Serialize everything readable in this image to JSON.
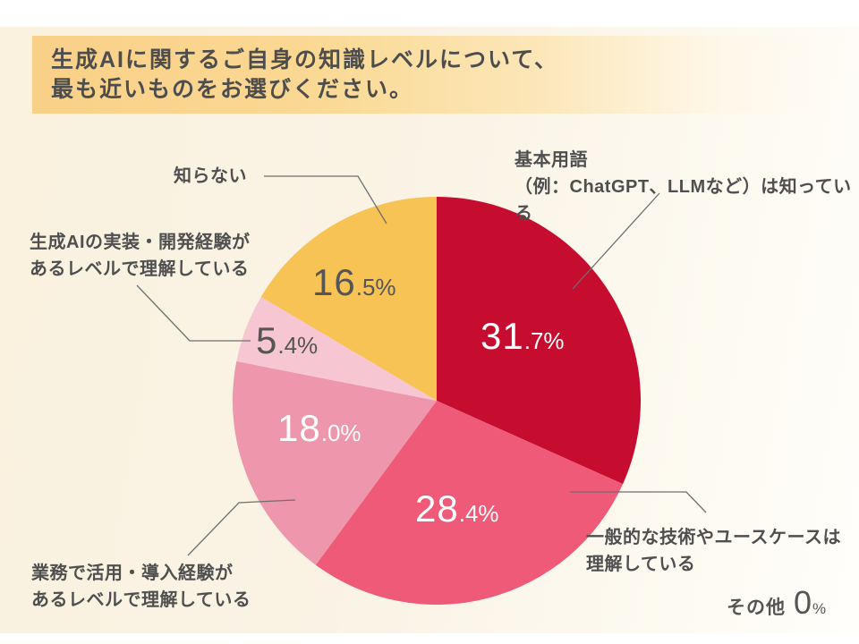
{
  "header": {
    "title": "生成AIに関するご自身の知識レベルについて、\n最も近いものをお選びください。"
  },
  "colors": {
    "banner_gradient_start": "#F9D088",
    "background_cream": "#FAF3E5",
    "label_text": "#4F4F4F",
    "leader_line": "#6F6F6F"
  },
  "chart_data": {
    "type": "pie",
    "title": "生成AIに関するご自身の知識レベルについて、最も近いものをお選びください。",
    "units": "%",
    "total": 100,
    "start_angle": "12-oclock",
    "direction": "clockwise",
    "legend_position": "callouts-around-pie",
    "slices": [
      {
        "label": "基本用語\n（例：ChatGPT、LLMなど）は知っている",
        "value": 31.7,
        "display": "31.7%",
        "color": "#C60D30",
        "value_text_color": "#FFFFFF"
      },
      {
        "label": "一般的な技術やユースケースは\n理解している",
        "value": 28.4,
        "display": "28.4%",
        "color": "#EF5A78",
        "value_text_color": "#FFFFFF"
      },
      {
        "label": "業務で活用・導入経験が\nあるレベルで理解している",
        "value": 18.0,
        "display": "18.0%",
        "color": "#EE96AB",
        "value_text_color": "#FFFFFF"
      },
      {
        "label": "生成AIの実装・開発経験が\nあるレベルで理解している",
        "value": 5.4,
        "display": "5.4%",
        "color": "#F6C6D2",
        "value_text_color": "#555555"
      },
      {
        "label": "知らない",
        "value": 16.5,
        "display": "16.5%",
        "color": "#F8C355",
        "value_text_color": "#555555"
      },
      {
        "label": "その他",
        "value": 0,
        "display": "0%",
        "color": null,
        "value_text_color": "#555555"
      }
    ]
  }
}
